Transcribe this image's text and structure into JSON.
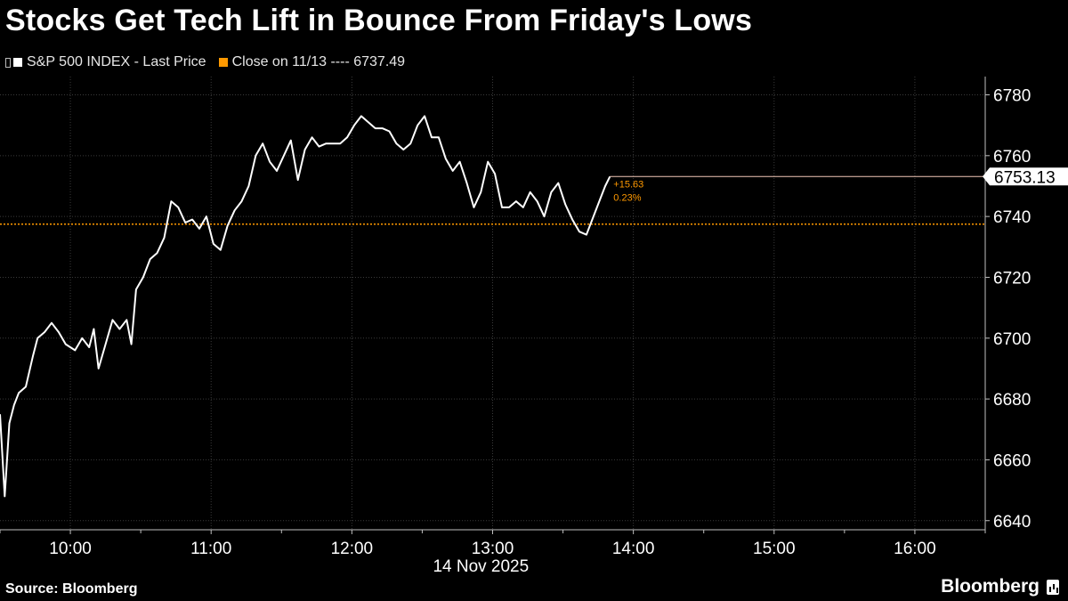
{
  "title": "Stocks Get Tech Lift in Bounce From Friday's Lows",
  "legend": {
    "price_label": "S&P 500 INDEX - Last Price",
    "close_label": "Close on 11/13 ---- 6737.49"
  },
  "source": "Source: Bloomberg",
  "brand": "Bloomberg",
  "colors": {
    "background": "#000000",
    "price": "#ffffff",
    "close": "#ff9900",
    "grid": "#3a3a3a"
  },
  "chart_data": {
    "type": "line",
    "date_label": "14 Nov 2025",
    "x_ticks": [
      "10:00",
      "11:00",
      "12:00",
      "13:00",
      "14:00",
      "15:00",
      "16:00"
    ],
    "y_ticks": [
      6640,
      6660,
      6680,
      6700,
      6720,
      6740,
      6760,
      6780
    ],
    "ylim": [
      6637,
      6786
    ],
    "xlim": [
      "09:30",
      "16:30"
    ],
    "reference_line": {
      "label": "Close on 11/13",
      "value": 6737.49
    },
    "last_price": {
      "value": "6753.13",
      "change": "+15.63",
      "change_pct": "0.23%"
    },
    "series": [
      {
        "name": "S&P 500 INDEX - Last Price",
        "points": [
          [
            "09:30",
            6675
          ],
          [
            "09:32",
            6648
          ],
          [
            "09:34",
            6672
          ],
          [
            "09:36",
            6678
          ],
          [
            "09:38",
            6682
          ],
          [
            "09:41",
            6684
          ],
          [
            "09:44",
            6694
          ],
          [
            "09:46",
            6700
          ],
          [
            "09:49",
            6702
          ],
          [
            "09:52",
            6705
          ],
          [
            "09:55",
            6702
          ],
          [
            "09:58",
            6698
          ],
          [
            "10:02",
            6696
          ],
          [
            "10:05",
            6700
          ],
          [
            "10:08",
            6697
          ],
          [
            "10:10",
            6703
          ],
          [
            "10:12",
            6690
          ],
          [
            "10:15",
            6698
          ],
          [
            "10:18",
            6706
          ],
          [
            "10:21",
            6703
          ],
          [
            "10:24",
            6706
          ],
          [
            "10:26",
            6698
          ],
          [
            "10:28",
            6716
          ],
          [
            "10:31",
            6720
          ],
          [
            "10:34",
            6726
          ],
          [
            "10:37",
            6728
          ],
          [
            "10:40",
            6733
          ],
          [
            "10:43",
            6745
          ],
          [
            "10:46",
            6743
          ],
          [
            "10:49",
            6738
          ],
          [
            "10:52",
            6739
          ],
          [
            "10:55",
            6736
          ],
          [
            "10:58",
            6740
          ],
          [
            "11:01",
            6731
          ],
          [
            "11:04",
            6729
          ],
          [
            "11:07",
            6737
          ],
          [
            "11:10",
            6742
          ],
          [
            "11:13",
            6745
          ],
          [
            "11:16",
            6750
          ],
          [
            "11:19",
            6760
          ],
          [
            "11:22",
            6764
          ],
          [
            "11:25",
            6758
          ],
          [
            "11:28",
            6755
          ],
          [
            "11:31",
            6760
          ],
          [
            "11:34",
            6765
          ],
          [
            "11:37",
            6752
          ],
          [
            "11:40",
            6762
          ],
          [
            "11:43",
            6766
          ],
          [
            "11:46",
            6763
          ],
          [
            "11:49",
            6764
          ],
          [
            "11:52",
            6764
          ],
          [
            "11:55",
            6764
          ],
          [
            "11:58",
            6766
          ],
          [
            "12:01",
            6770
          ],
          [
            "12:04",
            6773
          ],
          [
            "12:07",
            6771
          ],
          [
            "12:10",
            6769
          ],
          [
            "12:13",
            6769
          ],
          [
            "12:16",
            6768
          ],
          [
            "12:19",
            6764
          ],
          [
            "12:22",
            6762
          ],
          [
            "12:25",
            6764
          ],
          [
            "12:28",
            6770
          ],
          [
            "12:31",
            6773
          ],
          [
            "12:34",
            6766
          ],
          [
            "12:37",
            6766
          ],
          [
            "12:40",
            6759
          ],
          [
            "12:43",
            6755
          ],
          [
            "12:46",
            6758
          ],
          [
            "12:49",
            6751
          ],
          [
            "12:52",
            6743
          ],
          [
            "12:55",
            6748
          ],
          [
            "12:58",
            6758
          ],
          [
            "13:01",
            6754
          ],
          [
            "13:04",
            6743
          ],
          [
            "13:07",
            6743
          ],
          [
            "13:10",
            6745
          ],
          [
            "13:13",
            6743
          ],
          [
            "13:16",
            6748
          ],
          [
            "13:19",
            6745
          ],
          [
            "13:22",
            6740
          ],
          [
            "13:25",
            6748
          ],
          [
            "13:28",
            6751
          ],
          [
            "13:31",
            6744
          ],
          [
            "13:34",
            6739
          ],
          [
            "13:37",
            6735
          ],
          [
            "13:40",
            6734
          ],
          [
            "13:43",
            6740
          ],
          [
            "13:46",
            6746
          ],
          [
            "13:48",
            6750
          ],
          [
            "13:50",
            6753.13
          ]
        ]
      }
    ]
  }
}
